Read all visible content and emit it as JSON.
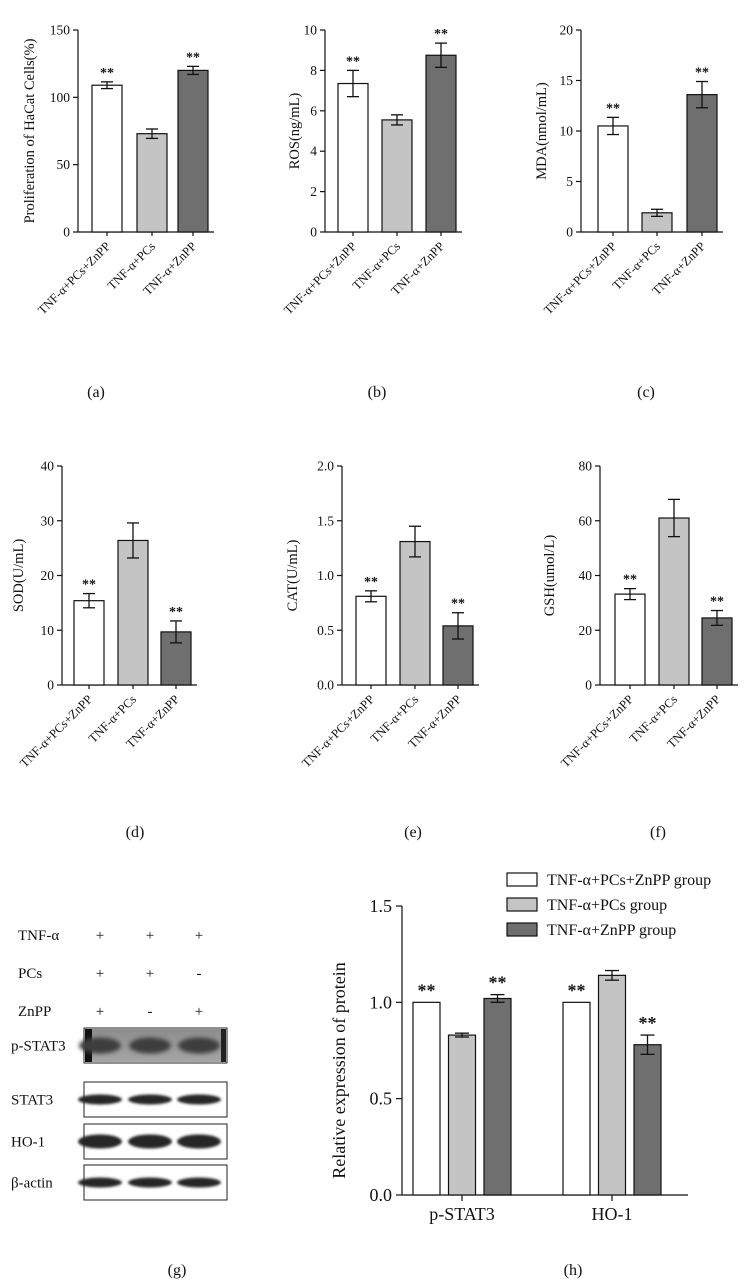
{
  "colors": {
    "white_bar": "#ffffff",
    "light_bar": "#c4c4c4",
    "dark_bar": "#6f6f6f",
    "axis": "#111111"
  },
  "chart_data": [
    {
      "type": "bar",
      "panel": "(a)",
      "categories": [
        "TNF-α+PCs+ZnPP",
        "TNF-α+PCs",
        "TNF-α+ZnPP"
      ],
      "values": [
        109,
        73,
        120
      ],
      "errors": [
        2.5,
        3.5,
        3
      ],
      "significance": [
        "**",
        "",
        "**"
      ],
      "ylabel": "Proliferation of HaCat Cells(%)",
      "ylim": [
        0,
        150
      ],
      "yticks": [
        "0",
        "50",
        "100",
        "150"
      ]
    },
    {
      "type": "bar",
      "panel": "(b)",
      "categories": [
        "TNF-α+PCs+ZnPP",
        "TNF-α+PCs",
        "TNF-α+ZnPP"
      ],
      "values": [
        7.35,
        5.55,
        8.75
      ],
      "errors": [
        0.65,
        0.25,
        0.6
      ],
      "significance": [
        "**",
        "",
        "**"
      ],
      "ylabel": "ROS(ng/mL)",
      "ylim": [
        0,
        10
      ],
      "yticks": [
        "0",
        "2",
        "4",
        "6",
        "8",
        "10"
      ]
    },
    {
      "type": "bar",
      "panel": "(c)",
      "categories": [
        "TNF-α+PCs+ZnPP",
        "TNF-α+PCs",
        "TNF-α+ZnPP"
      ],
      "values": [
        10.5,
        1.9,
        13.6
      ],
      "errors": [
        0.85,
        0.35,
        1.3
      ],
      "significance": [
        "**",
        "",
        "**"
      ],
      "ylabel": "MDA(nmol/mL)",
      "ylim": [
        0,
        20
      ],
      "yticks": [
        "0",
        "5",
        "10",
        "15",
        "20"
      ]
    },
    {
      "type": "bar",
      "panel": "(d)",
      "categories": [
        "TNF-α+PCs+ZnPP",
        "TNF-α+PCs",
        "TNF-α+ZnPP"
      ],
      "values": [
        15.4,
        26.4,
        9.7
      ],
      "errors": [
        1.3,
        3.2,
        2.0
      ],
      "significance": [
        "**",
        "",
        "**"
      ],
      "ylabel": "SOD(U/mL)",
      "ylim": [
        0,
        40
      ],
      "yticks": [
        "0",
        "10",
        "20",
        "30",
        "40"
      ]
    },
    {
      "type": "bar",
      "panel": "(e)",
      "categories": [
        "TNF-α+PCs+ZnPP",
        "TNF-α+PCs",
        "TNF-α+ZnPP"
      ],
      "values": [
        0.81,
        1.31,
        0.54
      ],
      "errors": [
        0.05,
        0.14,
        0.12
      ],
      "significance": [
        "**",
        "",
        "**"
      ],
      "ylabel": "CAT(U/mL)",
      "ylim": [
        0,
        2.0
      ],
      "yticks": [
        "0.0",
        "0.5",
        "1.0",
        "1.5",
        "2.0"
      ]
    },
    {
      "type": "bar",
      "panel": "(f)",
      "categories": [
        "TNF-α+PCs+ZnPP",
        "TNF-α+PCs",
        "TNF-α+ZnPP"
      ],
      "values": [
        33.2,
        61.0,
        24.5
      ],
      "errors": [
        2.0,
        6.8,
        2.7
      ],
      "significance": [
        "**",
        "",
        "**"
      ],
      "ylabel": "GSH(umol/L)",
      "ylim": [
        0,
        80
      ],
      "yticks": [
        "0",
        "20",
        "40",
        "60",
        "80"
      ]
    },
    {
      "type": "bar",
      "panel": "(h)",
      "categories": [
        "p-STAT3",
        "HO-1"
      ],
      "series": [
        {
          "name": "TNF-α+PCs+ZnPP group",
          "values": [
            1.0,
            1.0
          ],
          "errors": [
            0,
            0
          ],
          "significance": [
            "**",
            "**"
          ]
        },
        {
          "name": "TNF-α+PCs group",
          "values": [
            0.83,
            1.14
          ],
          "errors": [
            0.01,
            0.025
          ],
          "significance": [
            "",
            ""
          ]
        },
        {
          "name": "TNF-α+ZnPP group",
          "values": [
            1.02,
            0.78
          ],
          "errors": [
            0.02,
            0.05
          ],
          "significance": [
            "**",
            "**"
          ]
        }
      ],
      "ylabel": "Relative expression of protein",
      "ylim": [
        0,
        1.5
      ],
      "yticks": [
        "0.0",
        "0.5",
        "1.0",
        "1.5"
      ],
      "legend_position": "top-right"
    }
  ],
  "western_blot": {
    "panel": "(g)",
    "treatments": [
      {
        "name": "TNF-α",
        "signs": [
          "+",
          "+",
          "+"
        ]
      },
      {
        "name": "PCs",
        "signs": [
          "+",
          "+",
          "-"
        ]
      },
      {
        "name": "ZnPP",
        "signs": [
          "+",
          "-",
          "+"
        ]
      }
    ],
    "bands": [
      "p-STAT3",
      "STAT3",
      "HO-1",
      "β-actin"
    ]
  }
}
